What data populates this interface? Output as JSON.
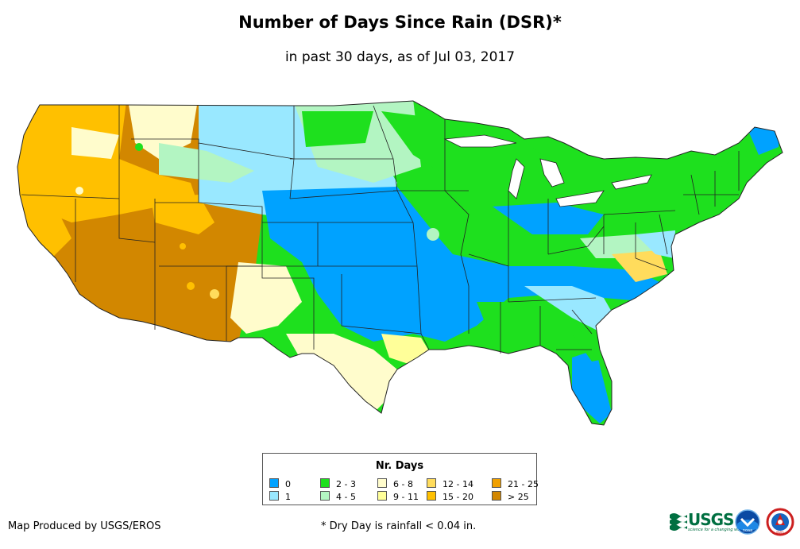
{
  "title": "Number of Days Since Rain (DSR)*",
  "subtitle": "in past 30 days, as of Jul 03, 2017",
  "legend": {
    "title": "Nr. Days",
    "items": [
      {
        "label": "0",
        "color": "#00a2ff"
      },
      {
        "label": "1",
        "color": "#99e8ff"
      },
      {
        "label": "2 - 3",
        "color": "#1ee01e"
      },
      {
        "label": "4 - 5",
        "color": "#b3f5c2"
      },
      {
        "label": "6 - 8",
        "color": "#fffccc"
      },
      {
        "label": "9 - 11",
        "color": "#ffff99"
      },
      {
        "label": "12 - 14",
        "color": "#ffdc5c"
      },
      {
        "label": "15 - 20",
        "color": "#ffc000"
      },
      {
        "label": "21 - 25",
        "color": "#f0a000"
      },
      {
        "label": "> 25",
        "color": "#d28700"
      }
    ]
  },
  "footer": {
    "producer": "Map Produced by USGS/EROS",
    "footnote": "* Dry Day is rainfall < 0.04 in."
  },
  "logos": {
    "usgs": "USGS",
    "usgs_tagline": "science for a changing world",
    "noaa": "noaa",
    "nws": "NWS"
  }
}
